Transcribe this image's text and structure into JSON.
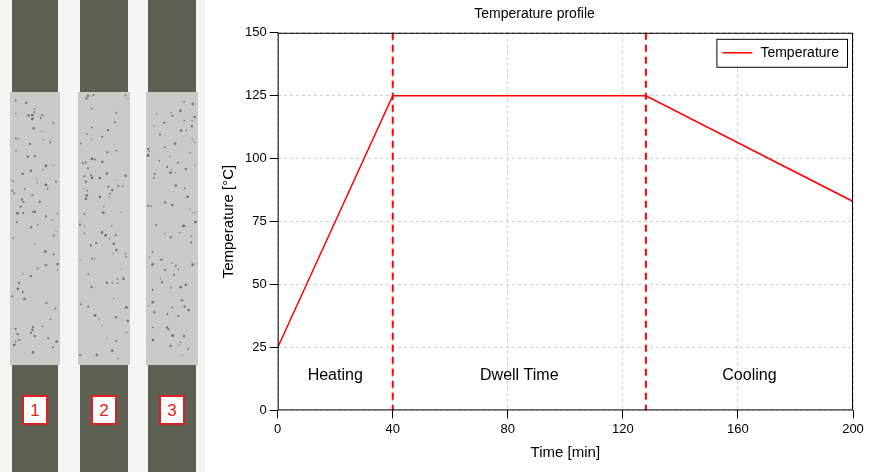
{
  "chart_data": {
    "type": "line",
    "title": "Temperature profile",
    "x_label": "Time [min]",
    "y_label": "Temperature [°C]",
    "x": [
      0,
      40,
      128,
      200
    ],
    "series": [
      {
        "name": "Temperature",
        "color": "#ff0000",
        "values": [
          25,
          125,
          125,
          83
        ],
        "line_style": "solid"
      }
    ],
    "xlim": [
      0,
      200
    ],
    "xticks": [
      0,
      40,
      80,
      120,
      160,
      200
    ],
    "ylim": [
      0,
      150
    ],
    "yticks": [
      0,
      25,
      50,
      75,
      100,
      125,
      150
    ],
    "vlines": [
      40,
      128
    ],
    "vline_color": "#ff0000",
    "region_labels": [
      "Heating",
      "Dwell Time",
      "Cooling"
    ],
    "grid": true,
    "legend": "upper right"
  },
  "photo": {
    "specimen_labels": [
      "1",
      "2",
      "3"
    ],
    "label_color": "#e02020"
  }
}
